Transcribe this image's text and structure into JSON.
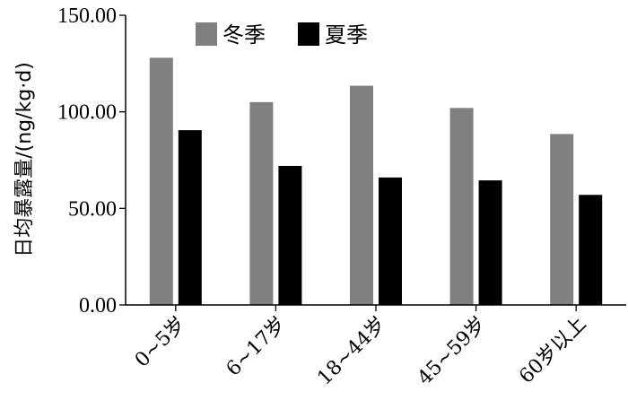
{
  "chart_data": {
    "type": "bar",
    "title": "",
    "xlabel": "",
    "ylabel": "日均暴露量/(ng/kg·d)",
    "categories": [
      "0~5岁",
      "6~17岁",
      "18~44岁",
      "45~59岁",
      "60岁以上"
    ],
    "series": [
      {
        "name": "冬季",
        "color": "#808080",
        "values": [
          128,
          105,
          113.5,
          102,
          88.5
        ]
      },
      {
        "name": "夏季",
        "color": "#000000",
        "values": [
          90.5,
          72,
          66,
          64.5,
          57
        ]
      }
    ],
    "ylim": [
      0,
      150
    ],
    "yticks": [
      0,
      50,
      100,
      150
    ],
    "ytick_labels": [
      "0.00",
      "50.00",
      "100.00",
      "150.00"
    ],
    "grid": false,
    "legend_position": "top"
  }
}
